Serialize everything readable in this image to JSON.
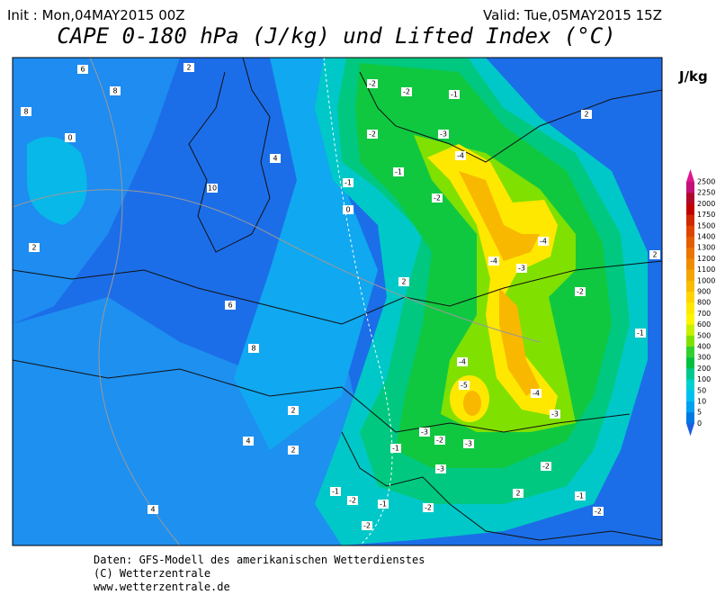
{
  "header": {
    "init": "Init : Mon,04MAY2015 00Z",
    "valid": "Valid: Tue,05MAY2015 15Z",
    "title": "CAPE 0-180 hPa (J/kg) und Lifted Index (°C)"
  },
  "colorbar": {
    "unit": "J/kg",
    "levels": [
      2500,
      2250,
      2000,
      1750,
      1500,
      1400,
      1300,
      1200,
      1100,
      1000,
      900,
      800,
      700,
      600,
      500,
      400,
      300,
      200,
      100,
      50,
      10,
      5,
      0
    ],
    "colors": [
      "#e0168f",
      "#c4107a",
      "#b0082a",
      "#c00000",
      "#d02800",
      "#dc4400",
      "#e45c00",
      "#ec7400",
      "#f08c00",
      "#f4a400",
      "#f8bc00",
      "#ffd400",
      "#ffe800",
      "#fff400",
      "#c8f000",
      "#80e000",
      "#30d030",
      "#00c040",
      "#00c890",
      "#00d0d0",
      "#00c0f0",
      "#00a0f0",
      "#0078e4",
      "#1c5ee0"
    ]
  },
  "contour_labels": [
    6,
    2,
    8,
    8,
    0,
    4,
    10,
    2,
    6,
    8,
    2,
    4,
    2,
    4,
    2,
    0,
    -2,
    -2,
    -1,
    -2,
    -3,
    -1,
    -1,
    -2,
    -4,
    -4,
    -4,
    -3,
    -2,
    2,
    -4,
    -5,
    -4,
    -3,
    -3,
    -2,
    -3,
    -1,
    -3,
    -2,
    -1,
    -2,
    -1,
    -2,
    -2,
    -1,
    -2,
    -1,
    2,
    2
  ],
  "footer": {
    "line1": "Daten: GFS-Modell des amerikanischen Wetterdienstes",
    "line2": "(C) Wetterzentrale",
    "line3": "www.wetterzentrale.de"
  }
}
